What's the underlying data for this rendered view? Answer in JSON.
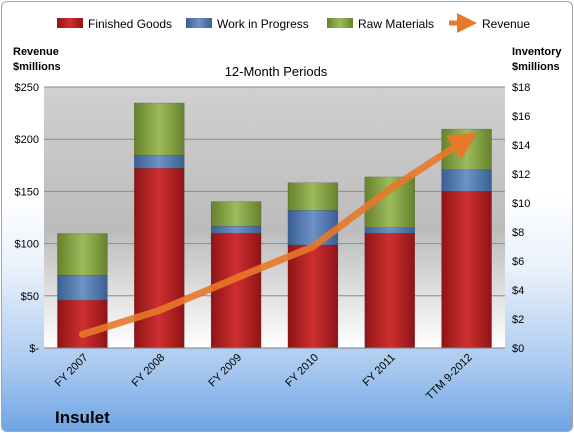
{
  "chart_data": {
    "type": "bar",
    "subtitle": "12-Month Periods",
    "company": "Insulet",
    "left_axis_title": [
      "Revenue",
      "$millions"
    ],
    "right_axis_title": [
      "Inventory",
      "$millions"
    ],
    "categories": [
      "FY 2007",
      "FY 2008",
      "FY 2009",
      "FY 2010",
      "FY 2011",
      "TTM 9-2012"
    ],
    "left_ylim": [
      0,
      250
    ],
    "left_ticks": [
      0,
      50,
      100,
      150,
      200,
      250
    ],
    "left_tick_labels": [
      "$-",
      "$50",
      "$100",
      "$150",
      "$200",
      "$250"
    ],
    "right_ylim": [
      0,
      18
    ],
    "right_ticks": [
      0,
      2,
      4,
      6,
      8,
      10,
      12,
      14,
      16,
      18
    ],
    "right_tick_labels": [
      "$0",
      "$2",
      "$4",
      "$6",
      "$8",
      "$10",
      "$12",
      "$14",
      "$16",
      "$18"
    ],
    "series": [
      {
        "name": "Finished Goods",
        "axis": "right",
        "color": "#c0282a",
        "values": [
          3.3,
          12.4,
          7.9,
          7.1,
          7.9,
          10.8
        ]
      },
      {
        "name": "Work in Progress",
        "axis": "right",
        "color": "#5b82b9",
        "values": [
          1.7,
          0.9,
          0.5,
          2.4,
          0.4,
          1.5
        ]
      },
      {
        "name": "Raw Materials",
        "axis": "right",
        "color": "#8fae50",
        "values": [
          2.9,
          3.6,
          1.7,
          1.9,
          3.5,
          2.8
        ]
      },
      {
        "name": "Revenue",
        "axis": "left",
        "type": "line",
        "color": "#e8782a",
        "values": [
          13,
          36,
          67,
          97,
          152,
          200
        ]
      }
    ],
    "legend_position": "top",
    "grid": true
  }
}
